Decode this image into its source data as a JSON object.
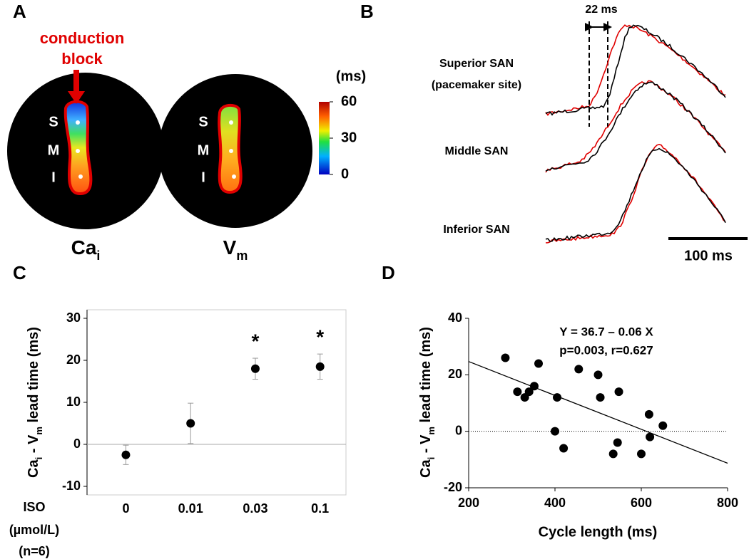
{
  "panel_labels": [
    "A",
    "B",
    "C",
    "D"
  ],
  "panel_a": {
    "annotation": [
      "conduction",
      "block"
    ],
    "map_labels": [
      "S",
      "M",
      "I"
    ],
    "maps": [
      [
        "Ca",
        "i"
      ],
      [
        "V",
        "m"
      ]
    ],
    "colorbar": {
      "unit": "(ms)",
      "ticks": [
        60,
        30,
        0
      ],
      "range": [
        0,
        60
      ]
    }
  },
  "panel_b": {
    "interval": "22 ms",
    "rows": [
      [
        "Superior SAN",
        "(pacemaker site)"
      ],
      [
        "Middle SAN"
      ],
      [
        "Inferior SAN"
      ]
    ],
    "scale_bar": "100 ms"
  },
  "chart_data": [
    {
      "type": "errorbar",
      "ylabel": [
        "Ca",
        "i",
        " - V",
        "m",
        " lead time (ms)"
      ],
      "xlabel": [
        "ISO",
        "(µmol/L)",
        "(n=6)"
      ],
      "categories": [
        "0",
        "0.01",
        "0.03",
        "0.1"
      ],
      "values": [
        -2.5,
        5,
        18,
        18.5
      ],
      "errors": [
        2.3,
        4.8,
        2.5,
        3
      ],
      "markers": [
        null,
        null,
        "*",
        "*"
      ],
      "color": "#000000",
      "ylim": [
        -10,
        30
      ],
      "yticks": [
        -10,
        0,
        10,
        20,
        30
      ]
    },
    {
      "type": "scatter",
      "ylabel": [
        "Ca",
        "i",
        " - V",
        "m",
        " lead time (ms)"
      ],
      "xlabel": "Cycle length (ms)",
      "annotations": [
        "Y = 36.7 – 0.06 X",
        "p=0.003, r=0.627"
      ],
      "fit": {
        "intercept": 36.7,
        "slope": -0.06
      },
      "reference_y": 0,
      "x": [
        285,
        313,
        330,
        340,
        352,
        362,
        400,
        405,
        420,
        455,
        500,
        505,
        535,
        545,
        548,
        600,
        618,
        620,
        650
      ],
      "values": [
        26,
        14,
        12,
        14,
        16,
        24,
        0,
        12,
        -6,
        22,
        20,
        12,
        -8,
        -4,
        14,
        -8,
        6,
        -2,
        2
      ],
      "color": "#000000",
      "xlim": [
        200,
        800
      ],
      "xticks": [
        200,
        400,
        600,
        800
      ],
      "ylim": [
        -20,
        40
      ],
      "yticks": [
        -20,
        0,
        20,
        40
      ]
    }
  ]
}
